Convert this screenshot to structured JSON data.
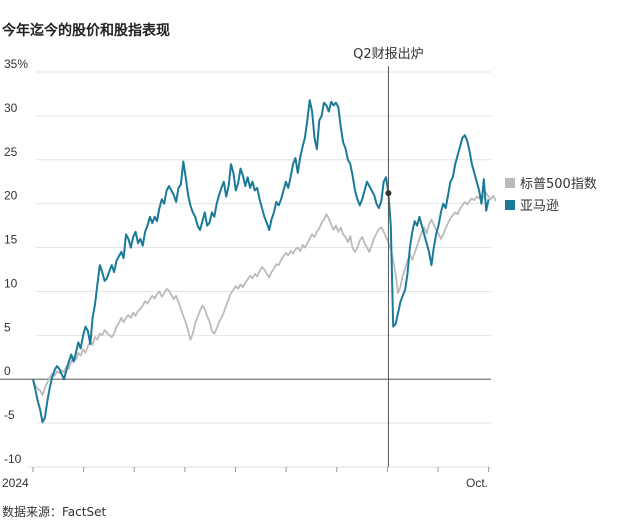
{
  "title": "今年迄今的股价和股指表现",
  "source": "数据来源：FactSet",
  "chart_data": {
    "type": "line",
    "title": "今年迄今的股价和股指表现",
    "xlabel": "",
    "ylabel": "",
    "x_tick_labels": [
      "2024",
      "Oct."
    ],
    "y_tick_labels": [
      "35%",
      "30",
      "25",
      "20",
      "15",
      "10",
      "5",
      "0",
      "-5",
      "-10"
    ],
    "y_ticks": [
      35,
      30,
      25,
      20,
      15,
      10,
      5,
      0,
      -5,
      -10
    ],
    "ylim": [
      -10,
      35
    ],
    "x_unit": "trading day",
    "xlim": [
      0,
      192
    ],
    "grid": true,
    "legend_position": "right",
    "annotation": {
      "label": "Q2财报出炉",
      "x": 149,
      "y": 21.2
    },
    "series": [
      {
        "name": "标普500指数",
        "color": "#bbbbbb",
        "values": [
          0.0,
          -0.7,
          -1.1,
          -1.3,
          -1.8,
          -1.0,
          -0.4,
          0.2,
          0.6,
          0.4,
          0.9,
          0.7,
          1.0,
          0.8,
          1.5,
          1.2,
          2.0,
          2.5,
          2.2,
          3.0,
          2.7,
          3.4,
          3.0,
          3.8,
          4.3,
          3.9,
          4.8,
          4.5,
          5.2,
          5.0,
          5.6,
          5.3,
          5.0,
          4.8,
          5.2,
          6.0,
          6.4,
          7.0,
          6.5,
          7.0,
          7.3,
          7.0,
          7.6,
          7.2,
          7.8,
          8.0,
          8.4,
          8.9,
          8.6,
          9.1,
          9.5,
          9.2,
          9.7,
          10.0,
          9.4,
          9.8,
          10.3,
          10.1,
          9.6,
          9.1,
          9.5,
          8.8,
          8.0,
          7.2,
          6.5,
          5.5,
          4.5,
          5.2,
          6.4,
          7.1,
          7.8,
          8.4,
          8.0,
          7.2,
          6.6,
          5.5,
          5.2,
          5.8,
          6.5,
          7.0,
          7.6,
          8.4,
          9.1,
          9.8,
          10.2,
          10.6,
          10.3,
          10.8,
          10.5,
          11.0,
          11.4,
          11.8,
          11.5,
          12.0,
          11.7,
          12.3,
          12.8,
          12.5,
          12.0,
          11.6,
          12.2,
          12.6,
          13.1,
          13.0,
          13.6,
          14.0,
          14.4,
          14.1,
          14.6,
          14.3,
          14.8,
          15.0,
          14.6,
          15.3,
          15.0,
          15.5,
          16.0,
          16.5,
          16.2,
          16.8,
          17.2,
          17.8,
          18.2,
          18.8,
          18.3,
          17.6,
          17.0,
          17.5,
          16.8,
          17.3,
          16.5,
          16.2,
          15.6,
          16.3,
          14.9,
          14.5,
          15.0,
          15.8,
          16.2,
          15.5,
          15.0,
          14.5,
          15.2,
          16.1,
          16.6,
          17.1,
          17.3,
          16.8,
          16.2,
          15.6,
          14.8,
          13.5,
          12.0,
          9.8,
          10.5,
          11.8,
          12.5,
          13.5,
          14.2,
          13.6,
          14.4,
          15.2,
          16.0,
          16.8,
          17.3,
          16.6,
          17.6,
          18.2,
          17.6,
          17.0,
          16.6,
          16.0,
          16.5,
          17.2,
          17.8,
          18.3,
          18.7,
          19.0,
          18.8,
          19.4,
          19.8,
          20.2,
          19.9,
          20.3,
          20.6,
          20.4,
          20.8,
          20.6,
          21.0,
          20.7,
          21.2,
          20.8,
          20.5,
          20.9,
          20.3
        ]
      },
      {
        "name": "亚马逊",
        "color": "#1b7a98",
        "values": [
          0.0,
          -1.2,
          -2.5,
          -3.5,
          -4.9,
          -4.4,
          -2.5,
          -1.0,
          0.2,
          1.0,
          1.5,
          1.2,
          0.6,
          0.0,
          1.0,
          2.0,
          2.8,
          2.0,
          3.0,
          4.2,
          3.5,
          5.0,
          6.0,
          5.5,
          4.0,
          7.0,
          8.5,
          10.8,
          13.0,
          12.2,
          11.2,
          11.5,
          12.3,
          13.0,
          12.2,
          13.5,
          14.0,
          14.5,
          13.8,
          16.5,
          16.0,
          15.0,
          16.2,
          16.8,
          15.5,
          16.0,
          15.2,
          16.8,
          17.5,
          18.5,
          17.8,
          18.5,
          18.0,
          19.5,
          20.5,
          20.0,
          21.5,
          22.0,
          21.5,
          21.0,
          20.2,
          21.8,
          22.2,
          24.8,
          23.0,
          21.0,
          19.8,
          19.0,
          18.5,
          17.5,
          17.0,
          18.0,
          19.0,
          17.5,
          17.8,
          19.0,
          18.5,
          20.0,
          21.0,
          21.8,
          22.5,
          20.8,
          22.0,
          24.5,
          23.5,
          21.5,
          22.3,
          24.0,
          23.2,
          22.0,
          23.0,
          21.8,
          22.5,
          21.5,
          21.8,
          20.5,
          19.5,
          18.5,
          17.8,
          17.0,
          18.2,
          19.0,
          20.2,
          19.8,
          20.5,
          21.5,
          22.5,
          21.8,
          23.0,
          24.5,
          25.2,
          23.5,
          25.3,
          26.5,
          27.5,
          29.5,
          31.8,
          30.5,
          27.5,
          26.2,
          29.5,
          30.0,
          31.5,
          31.2,
          30.5,
          31.6,
          31.2,
          31.5,
          31.0,
          28.8,
          27.0,
          26.3,
          25.0,
          24.5,
          23.2,
          21.5,
          20.5,
          19.8,
          20.5,
          21.5,
          22.5,
          22.0,
          21.5,
          21.0,
          20.0,
          19.5,
          20.3,
          22.5,
          23.0,
          21.2,
          17.5,
          6.0,
          6.3,
          7.5,
          8.8,
          9.5,
          10.2,
          12.0,
          15.0,
          16.8,
          18.0,
          17.5,
          18.5,
          17.5,
          16.5,
          15.5,
          14.5,
          13.0,
          15.0,
          16.5,
          17.5,
          19.0,
          20.0,
          19.5,
          21.0,
          22.5,
          23.0,
          24.5,
          25.5,
          26.5,
          27.5,
          27.8,
          27.2,
          26.0,
          24.5,
          23.5,
          22.5,
          21.5,
          20.0,
          22.8,
          19.2,
          20.5
        ]
      }
    ]
  }
}
